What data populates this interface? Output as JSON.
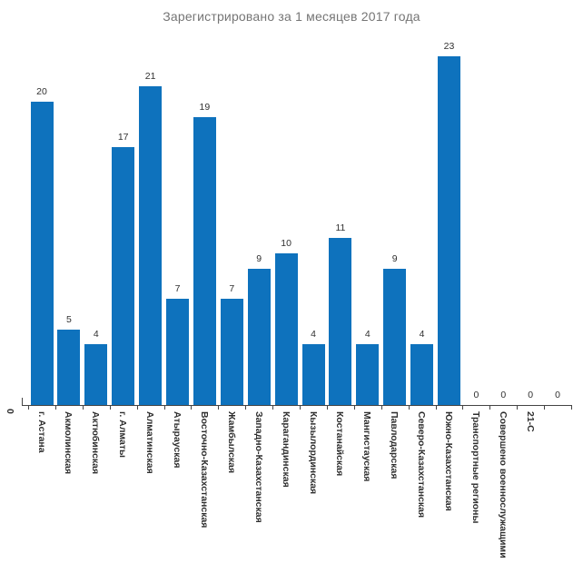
{
  "chart_data": {
    "type": "bar",
    "title": "Зарегистрировано за 1 месяцев 2017 года",
    "categories": [
      "г. Астана",
      "Акмолинская",
      "Актюбинская",
      "г. Алматы",
      "Алматинская",
      "Атырауская",
      "Восточно-Казахстанская",
      "Жамбылская",
      "Западно-Казахстанская",
      "Карагандинская",
      "Кызылординская",
      "Костанайская",
      "Мангистауская",
      "Павлодарская",
      "Северо-Казахстанская",
      "Южно-Казахстанская",
      "Транспортные регионы",
      "Совершено военнослужащими",
      "21-С",
      ""
    ],
    "values": [
      20,
      5,
      4,
      17,
      21,
      7,
      19,
      7,
      9,
      10,
      4,
      11,
      4,
      9,
      4,
      23,
      0,
      0,
      0,
      0
    ],
    "value_labels": [
      "20",
      "5",
      "4",
      "17",
      "21",
      "7",
      "19",
      "7",
      "9",
      "10",
      "4",
      "11",
      "4",
      "9",
      "4",
      "23",
      "0",
      "0",
      "0",
      "0"
    ],
    "origin_label": "0",
    "xlabel": "",
    "ylabel": "",
    "ylim": [
      0,
      23
    ],
    "grid": false,
    "legend": false,
    "value_labels_shown": true,
    "colors": {
      "bar": "#0e72bd",
      "title": "#757575",
      "category_label": "#2e2e2e",
      "value_label": "#303030",
      "axis": "#444444"
    }
  }
}
